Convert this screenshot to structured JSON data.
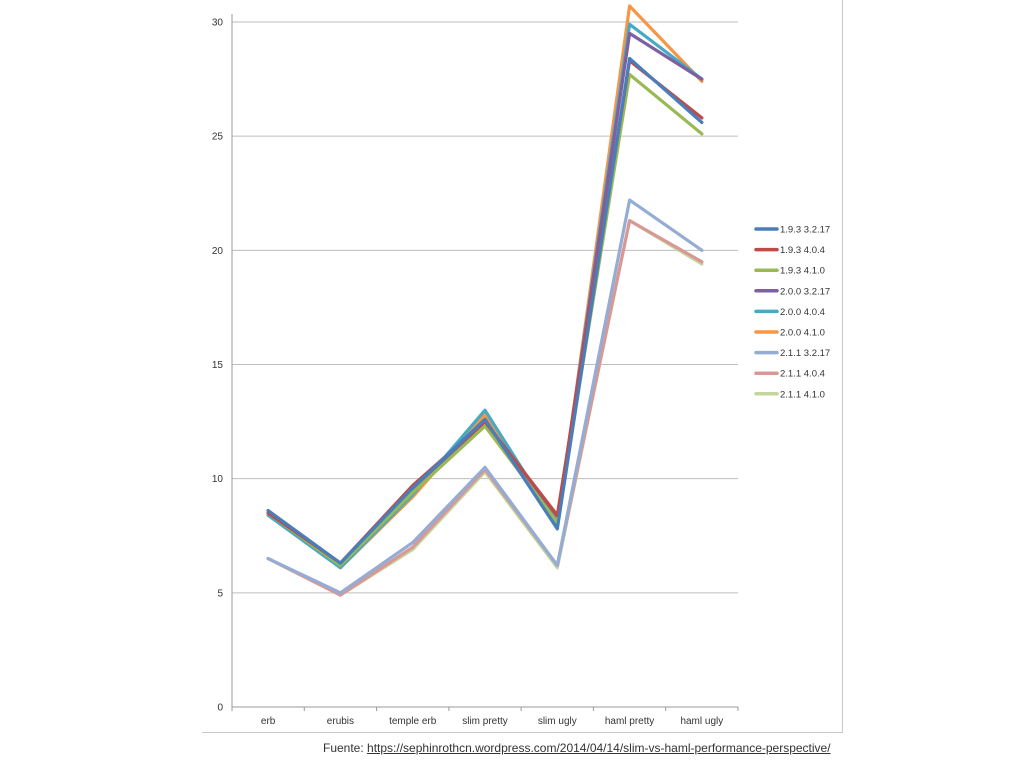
{
  "source": {
    "prefix": "Fuente: ",
    "link_text": "https://sephinrothcn.wordpress.com/2014/04/14/slim-vs-haml-performance-perspective/"
  },
  "chart_data": {
    "type": "line",
    "title": "",
    "xlabel": "",
    "ylabel": "",
    "categories": [
      "erb",
      "erubis",
      "temple erb",
      "slim pretty",
      "slim ugly",
      "haml pretty",
      "haml ugly"
    ],
    "ylim": [
      0,
      30
    ],
    "yticks": [
      0,
      5,
      10,
      15,
      20,
      25,
      30
    ],
    "grid": true,
    "legend_position": "right",
    "series": [
      {
        "name": "1.9.3 3.2.17",
        "color": "#4a7ebb",
        "values": [
          8.6,
          6.3,
          9.6,
          12.6,
          7.8,
          28.4,
          25.6
        ]
      },
      {
        "name": "1.9.3 4.0.4",
        "color": "#be4b48",
        "values": [
          8.5,
          6.3,
          9.7,
          12.5,
          8.4,
          28.3,
          25.8
        ]
      },
      {
        "name": "1.9.3 4.1.0",
        "color": "#98b954",
        "values": [
          8.5,
          6.2,
          9.4,
          12.3,
          8.1,
          27.7,
          25.1
        ]
      },
      {
        "name": "2.0.0 3.2.17",
        "color": "#7d60a0",
        "values": [
          8.6,
          6.2,
          9.5,
          12.5,
          8.2,
          29.5,
          27.5
        ]
      },
      {
        "name": "2.0.0 4.0.4",
        "color": "#46aac5",
        "values": [
          8.4,
          6.1,
          9.3,
          13.0,
          8.0,
          29.9,
          27.5
        ]
      },
      {
        "name": "2.0.0 4.1.0",
        "color": "#f79646",
        "values": [
          8.4,
          6.1,
          9.2,
          12.8,
          7.9,
          30.7,
          27.4
        ]
      },
      {
        "name": "2.1.1 3.2.17",
        "color": "#95acd4",
        "values": [
          6.5,
          5.0,
          7.2,
          10.5,
          6.2,
          22.2,
          20.0
        ]
      },
      {
        "name": "2.1.1 4.0.4",
        "color": "#d99795",
        "values": [
          6.5,
          4.9,
          7.0,
          10.4,
          6.2,
          21.3,
          19.5
        ]
      },
      {
        "name": "2.1.1 4.1.0",
        "color": "#c3d69b",
        "values": [
          6.5,
          4.9,
          6.9,
          10.3,
          6.1,
          21.3,
          19.4
        ]
      }
    ]
  }
}
